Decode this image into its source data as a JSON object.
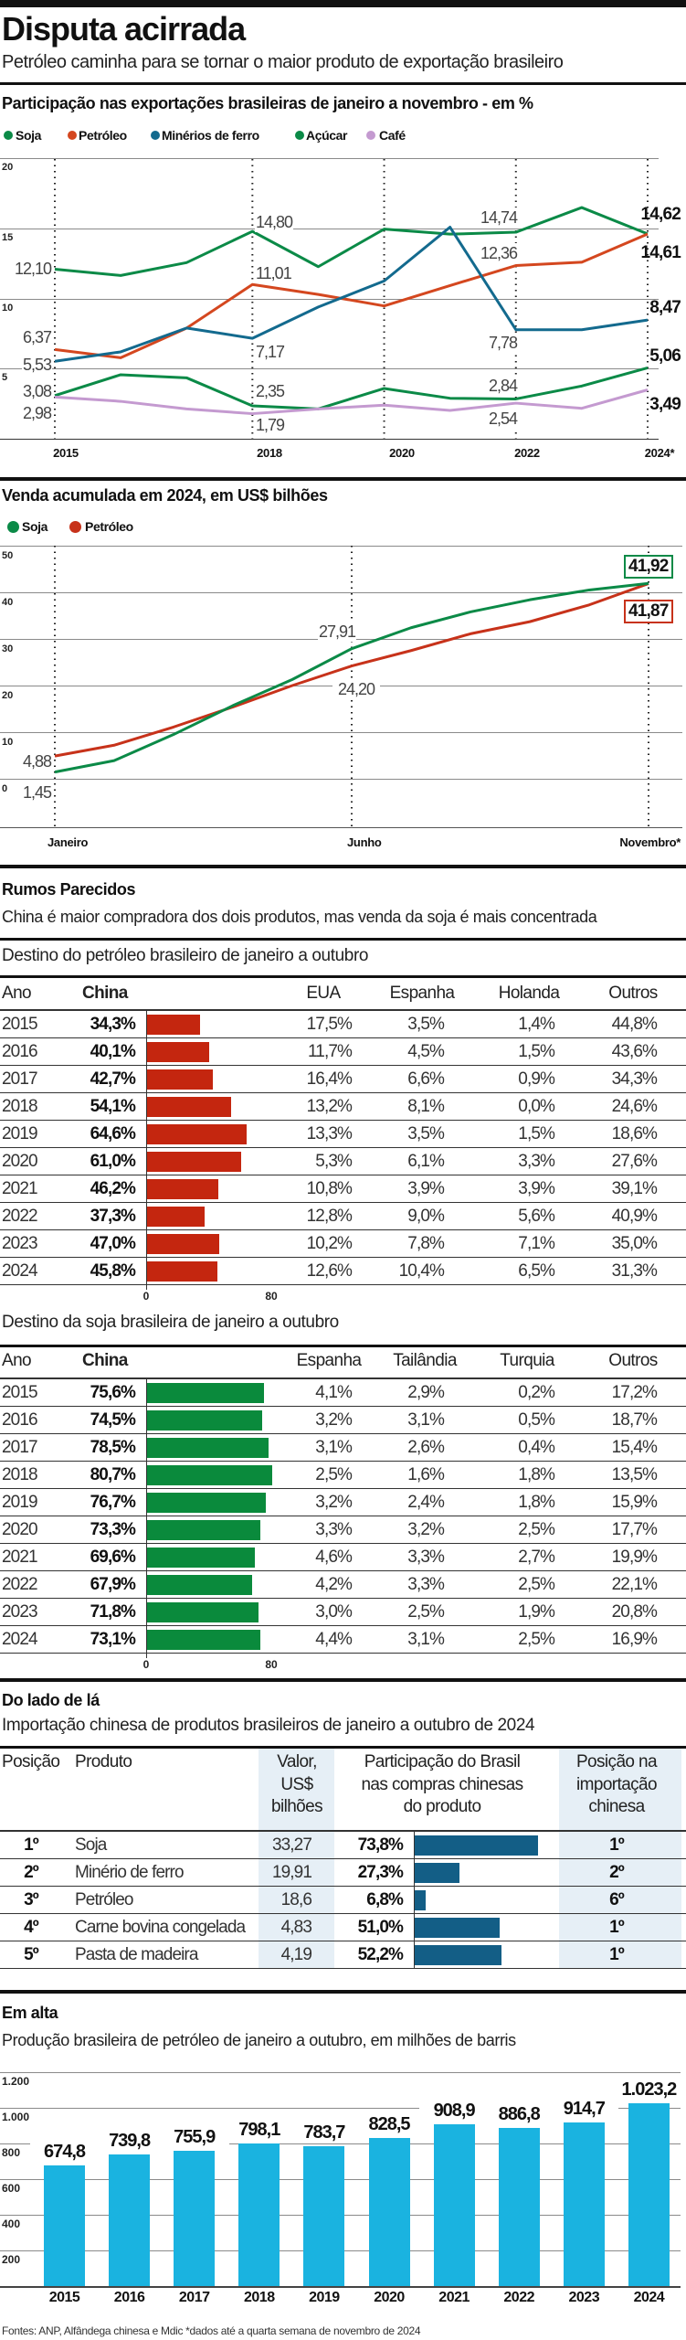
{
  "header": {
    "title": "Disputa acirrada",
    "subtitle": "Petróleo caminha para se tornar o maior produto de exportação brasileiro"
  },
  "chart_data": [
    {
      "type": "line",
      "title": "Participação nas exportações brasileiras de janeiro a novembro - em %",
      "x": [
        2015,
        2016,
        2017,
        2018,
        2019,
        2020,
        2021,
        2022,
        2023,
        2024
      ],
      "xtick_labels": [
        "2015",
        "2018",
        "2020",
        "2022",
        "2024*"
      ],
      "ytick_labels": [
        "20",
        "15",
        "10",
        "5"
      ],
      "ylim": [
        0,
        20
      ],
      "grid": true,
      "legend_position": "top-left",
      "series": [
        {
          "name": "Soja",
          "color": "#0b8a47",
          "values": [
            12.1,
            11.65,
            12.57,
            14.8,
            12.28,
            14.96,
            14.6,
            14.74,
            16.5,
            14.62
          ],
          "labels": {
            "2015": "12,10",
            "2018": "14,80",
            "2022": "14,74",
            "2024": "14,62"
          }
        },
        {
          "name": "Petróleo",
          "color": "#d4471f",
          "values": [
            6.37,
            5.78,
            7.89,
            11.01,
            10.3,
            9.48,
            10.93,
            12.36,
            12.6,
            14.61
          ],
          "labels": {
            "2015": "6,37",
            "2018": "11,01",
            "2022": "12,36",
            "2024": "14,61"
          }
        },
        {
          "name": "Minérios de ferro",
          "color": "#136a8e",
          "values": [
            5.53,
            6.2,
            7.9,
            7.17,
            9.4,
            11.26,
            15.1,
            7.78,
            7.78,
            8.47
          ],
          "labels": {
            "2015": "5,53",
            "2018": "7,17",
            "2022": "7,78",
            "2024": "8,47"
          }
        },
        {
          "name": "Açúcar",
          "color": "#0b8a47",
          "values": [
            3.08,
            4.57,
            4.35,
            2.35,
            2.13,
            3.59,
            2.89,
            2.84,
            3.76,
            5.06
          ],
          "labels": {
            "2015": "3,08",
            "2018": "2,35",
            "2022": "2,84",
            "2024": "5,06"
          }
        },
        {
          "name": "Café",
          "color": "#c49ad0",
          "values": [
            2.98,
            2.67,
            2.13,
            1.79,
            2.13,
            2.4,
            2.02,
            2.54,
            2.17,
            3.49
          ],
          "labels": {
            "2015": "2,98",
            "2018": "1,79",
            "2022": "2,54",
            "2024": "3,49"
          }
        }
      ]
    },
    {
      "type": "line",
      "title": "Venda acumulada em 2024, em US$ bilhões",
      "x": [
        "Janeiro",
        "Fevereiro",
        "Março",
        "Abril",
        "Maio",
        "Junho",
        "Julho",
        "Agosto",
        "Setembro",
        "Outubro",
        "Novembro"
      ],
      "xtick_labels": [
        "Janeiro",
        "Junho",
        "Novembro*"
      ],
      "ytick_labels": [
        "50",
        "40",
        "30",
        "20",
        "10",
        "0"
      ],
      "ylim": [
        0,
        50
      ],
      "grid": true,
      "legend_position": "top-left",
      "series": [
        {
          "name": "Soja",
          "color": "#0b8a47",
          "values": [
            1.45,
            3.9,
            9.5,
            15.7,
            21.3,
            27.91,
            32.4,
            35.8,
            38.4,
            40.5,
            41.92
          ],
          "labels": {
            "Janeiro": "1,45",
            "Junho": "27,91",
            "Novembro": "41,92"
          }
        },
        {
          "name": "Petróleo",
          "color": "#c7321a",
          "values": [
            4.88,
            7.2,
            11.1,
            15.4,
            20.0,
            24.2,
            27.5,
            31.1,
            33.7,
            37.3,
            41.87
          ],
          "labels": {
            "Janeiro": "4,88",
            "Junho": "24,20",
            "Novembro": "41,87"
          }
        }
      ]
    },
    {
      "type": "bar",
      "title": "Em alta",
      "subtitle": "Produção brasileira de petróleo de janeiro a outubro, em milhões de barris",
      "categories": [
        "2015",
        "2016",
        "2017",
        "2018",
        "2019",
        "2020",
        "2021",
        "2022",
        "2023",
        "2024"
      ],
      "values": [
        674.8,
        739.8,
        755.9,
        798.1,
        783.7,
        828.5,
        908.9,
        886.8,
        914.7,
        1023.2
      ],
      "value_labels": [
        "674,8",
        "739,8",
        "755,9",
        "798,1",
        "783,7",
        "828,5",
        "908,9",
        "886,8",
        "914,7",
        "1.023,2"
      ],
      "ytick_labels": [
        "1.200",
        "1.000",
        "800",
        "600",
        "400",
        "200"
      ],
      "ylim": [
        0,
        1200
      ],
      "grid": true,
      "color": "#1ab3e0"
    }
  ],
  "rumos": {
    "title": "Rumos Parecidos",
    "subtitle": "China é maior compradora dos dois produtos, mas venda da soja é mais concentrada"
  },
  "tables": {
    "petroleo": {
      "title": "Destino do petróleo brasileiro de janeiro a outubro",
      "columns": [
        "Ano",
        "China",
        "EUA",
        "Espanha",
        "Holanda",
        "Outros"
      ],
      "bar_color": "#c4260f",
      "axis": [
        "0",
        "80"
      ],
      "rows": [
        {
          "cells": [
            "2015",
            "34,3%",
            "17,5%",
            "3,5%",
            "1,4%",
            "44,8%"
          ],
          "china": 34.3
        },
        {
          "cells": [
            "2016",
            "40,1%",
            "11,7%",
            "4,5%",
            "1,5%",
            "43,6%"
          ],
          "china": 40.1
        },
        {
          "cells": [
            "2017",
            "42,7%",
            "16,4%",
            "6,6%",
            "0,9%",
            "34,3%"
          ],
          "china": 42.7
        },
        {
          "cells": [
            "2018",
            "54,1%",
            "13,2%",
            "8,1%",
            "0,0%",
            "24,6%"
          ],
          "china": 54.1
        },
        {
          "cells": [
            "2019",
            "64,6%",
            "13,3%",
            "3,5%",
            "1,5%",
            "18,6%"
          ],
          "china": 64.6
        },
        {
          "cells": [
            "2020",
            "61,0%",
            "5,3%",
            "6,1%",
            "3,3%",
            "27,6%"
          ],
          "china": 61.0
        },
        {
          "cells": [
            "2021",
            "46,2%",
            "10,8%",
            "3,9%",
            "3,9%",
            "39,1%"
          ],
          "china": 46.2
        },
        {
          "cells": [
            "2022",
            "37,3%",
            "12,8%",
            "9,0%",
            "5,6%",
            "40,9%"
          ],
          "china": 37.3
        },
        {
          "cells": [
            "2023",
            "47,0%",
            "10,2%",
            "7,8%",
            "7,1%",
            "35,0%"
          ],
          "china": 47.0
        },
        {
          "cells": [
            "2024",
            "45,8%",
            "12,6%",
            "10,4%",
            "6,5%",
            "31,3%"
          ],
          "china": 45.8
        }
      ]
    },
    "soja": {
      "title": "Destino da soja brasileira de janeiro a outubro",
      "columns": [
        "Ano",
        "China",
        "Espanha",
        "Tailândia",
        "Turquia",
        "Outros"
      ],
      "bar_color": "#0a8a3c",
      "axis": [
        "0",
        "80"
      ],
      "rows": [
        {
          "cells": [
            "2015",
            "75,6%",
            "4,1%",
            "2,9%",
            "0,2%",
            "17,2%"
          ],
          "china": 75.6
        },
        {
          "cells": [
            "2016",
            "74,5%",
            "3,2%",
            "3,1%",
            "0,5%",
            "18,7%"
          ],
          "china": 74.5
        },
        {
          "cells": [
            "2017",
            "78,5%",
            "3,1%",
            "2,6%",
            "0,4%",
            "15,4%"
          ],
          "china": 78.5
        },
        {
          "cells": [
            "2018",
            "80,7%",
            "2,5%",
            "1,6%",
            "1,8%",
            "13,5%"
          ],
          "china": 80.7
        },
        {
          "cells": [
            "2019",
            "76,7%",
            "3,2%",
            "2,4%",
            "1,8%",
            "15,9%"
          ],
          "china": 76.7
        },
        {
          "cells": [
            "2020",
            "73,3%",
            "3,3%",
            "3,2%",
            "2,5%",
            "17,7%"
          ],
          "china": 73.3
        },
        {
          "cells": [
            "2021",
            "69,6%",
            "4,6%",
            "3,3%",
            "2,7%",
            "19,9%"
          ],
          "china": 69.6
        },
        {
          "cells": [
            "2022",
            "67,9%",
            "4,2%",
            "3,3%",
            "2,5%",
            "22,1%"
          ],
          "china": 67.9
        },
        {
          "cells": [
            "2023",
            "71,8%",
            "3,0%",
            "2,5%",
            "1,9%",
            "20,8%"
          ],
          "china": 71.8
        },
        {
          "cells": [
            "2024",
            "73,1%",
            "4,4%",
            "3,1%",
            "2,5%",
            "16,9%"
          ],
          "china": 73.1
        }
      ]
    },
    "china": {
      "title": "Do lado de lá",
      "subtitle": "Importação chinesa de produtos brasileiros de janeiro a outubro de 2024",
      "columns": {
        "posicao": "Posição",
        "produto": "Produto",
        "valor": [
          "Valor,",
          "US$",
          "bilhões"
        ],
        "participacao": [
          "Participação do Brasil",
          "nas compras chinesas",
          "do produto"
        ],
        "posicao_china": [
          "Posição na",
          "importação",
          "chinesa"
        ]
      },
      "bar_color": "#135e86",
      "rows": [
        {
          "cells": [
            "1º",
            "Soja",
            "33,27",
            "73,8%",
            "1º"
          ],
          "share": 73.8
        },
        {
          "cells": [
            "2º",
            "Minério de ferro",
            "19,91",
            "27,3%",
            "2º"
          ],
          "share": 27.3
        },
        {
          "cells": [
            "3º",
            "Petróleo",
            "18,6",
            "6,8%",
            "6º"
          ],
          "share": 6.8
        },
        {
          "cells": [
            "4º",
            "Carne bovina congelada",
            "4,83",
            "51,0%",
            "1º"
          ],
          "share": 51.0
        },
        {
          "cells": [
            "5º",
            "Pasta de madeira",
            "4,19",
            "52,2%",
            "1º"
          ],
          "share": 52.2
        }
      ]
    }
  },
  "footer": "Fontes: ANP, Alfândega chinesa e Mdic *dados até a quarta semana de novembro de 2024"
}
